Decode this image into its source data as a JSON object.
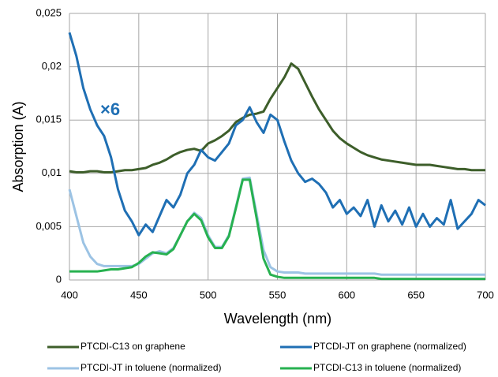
{
  "chart_data": {
    "type": "line",
    "xlabel": "Wavelength (nm)",
    "ylabel": "Absorption (A)",
    "annotation": "×6",
    "annotation_color": "#1f6fb4",
    "grid": true,
    "xlim": [
      400,
      700
    ],
    "xticks": [
      400,
      450,
      500,
      550,
      600,
      650,
      700
    ],
    "ylim": [
      0,
      0.025
    ],
    "yticks": [
      0,
      {
        "value": 0.005,
        "label": "0,005"
      },
      {
        "value": 0.01,
        "label": "0,01"
      },
      {
        "value": 0.015,
        "label": "0,015"
      },
      {
        "value": 0.02,
        "label": "0,02"
      },
      {
        "value": 0.025,
        "label": "0,025"
      }
    ],
    "x": [
      400,
      405,
      410,
      415,
      420,
      425,
      430,
      435,
      440,
      445,
      450,
      455,
      460,
      465,
      470,
      475,
      480,
      485,
      490,
      495,
      500,
      505,
      510,
      515,
      520,
      525,
      530,
      535,
      540,
      545,
      550,
      555,
      560,
      565,
      570,
      575,
      580,
      585,
      590,
      595,
      600,
      605,
      610,
      615,
      620,
      625,
      630,
      635,
      640,
      645,
      650,
      655,
      660,
      665,
      670,
      675,
      680,
      685,
      690,
      695,
      700
    ],
    "series": [
      {
        "name": "PTCDI-C13 on graphene",
        "color": "#3d5e2a",
        "values": [
          0.0102,
          0.0101,
          0.0101,
          0.0102,
          0.0102,
          0.0101,
          0.0101,
          0.0102,
          0.0103,
          0.0103,
          0.0104,
          0.0105,
          0.0108,
          0.011,
          0.0113,
          0.0117,
          0.012,
          0.0122,
          0.0123,
          0.0121,
          0.0128,
          0.0131,
          0.0135,
          0.014,
          0.0148,
          0.0152,
          0.0155,
          0.0156,
          0.0158,
          0.017,
          0.018,
          0.019,
          0.0203,
          0.0198,
          0.0185,
          0.0172,
          0.016,
          0.015,
          0.014,
          0.0133,
          0.0128,
          0.0124,
          0.012,
          0.0117,
          0.0115,
          0.0113,
          0.0112,
          0.0111,
          0.011,
          0.0109,
          0.0108,
          0.0108,
          0.0108,
          0.0107,
          0.0106,
          0.0105,
          0.0104,
          0.0104,
          0.0103,
          0.0103,
          0.0103
        ]
      },
      {
        "name": "PTCDI-JT on graphene (normalized)",
        "color": "#1f6fb4",
        "values": [
          0.0232,
          0.021,
          0.018,
          0.016,
          0.0145,
          0.0135,
          0.0115,
          0.0085,
          0.0065,
          0.0055,
          0.0042,
          0.0052,
          0.0045,
          0.006,
          0.0075,
          0.0068,
          0.008,
          0.01,
          0.0108,
          0.0122,
          0.0115,
          0.0112,
          0.012,
          0.0128,
          0.0145,
          0.015,
          0.0162,
          0.0148,
          0.0138,
          0.0155,
          0.015,
          0.013,
          0.0112,
          0.01,
          0.0092,
          0.0095,
          0.009,
          0.0082,
          0.0068,
          0.0075,
          0.0062,
          0.0068,
          0.006,
          0.0075,
          0.005,
          0.007,
          0.0055,
          0.0065,
          0.0052,
          0.0068,
          0.005,
          0.0062,
          0.005,
          0.0058,
          0.0052,
          0.0075,
          0.0048,
          0.0055,
          0.0062,
          0.0075,
          0.007
        ]
      },
      {
        "name": "PTCDI-JT in toluene (normalized)",
        "color": "#9cc3e4",
        "values": [
          0.0085,
          0.006,
          0.0035,
          0.0022,
          0.0015,
          0.0013,
          0.0013,
          0.0013,
          0.0013,
          0.0013,
          0.0015,
          0.002,
          0.0025,
          0.0027,
          0.0025,
          0.003,
          0.0042,
          0.0055,
          0.0063,
          0.0058,
          0.0042,
          0.0031,
          0.0031,
          0.0042,
          0.0068,
          0.0095,
          0.0096,
          0.0062,
          0.0028,
          0.0012,
          0.0008,
          0.0007,
          0.0007,
          0.0007,
          0.0006,
          0.0006,
          0.0006,
          0.0006,
          0.0006,
          0.0006,
          0.0006,
          0.0006,
          0.0006,
          0.0006,
          0.0006,
          0.0005,
          0.0005,
          0.0005,
          0.0005,
          0.0005,
          0.0005,
          0.0005,
          0.0005,
          0.0005,
          0.0005,
          0.0005,
          0.0005,
          0.0005,
          0.0005,
          0.0005,
          0.0005
        ]
      },
      {
        "name": "PTCDI-C13 in toluene (normalized)",
        "color": "#27b150",
        "values": [
          0.0008,
          0.0008,
          0.0008,
          0.0008,
          0.0008,
          0.0009,
          0.001,
          0.001,
          0.0011,
          0.0012,
          0.0016,
          0.0022,
          0.0026,
          0.0025,
          0.0024,
          0.0029,
          0.0042,
          0.0055,
          0.0062,
          0.0056,
          0.004,
          0.003,
          0.003,
          0.0041,
          0.0067,
          0.0094,
          0.0094,
          0.0058,
          0.002,
          0.0005,
          0.0003,
          0.0002,
          0.0002,
          0.0002,
          0.0002,
          0.0002,
          0.0002,
          0.0002,
          0.0002,
          0.0002,
          0.0002,
          0.0002,
          0.0002,
          0.0002,
          0.0002,
          0.0001,
          0.0001,
          0.0001,
          0.0001,
          0.0001,
          0.0001,
          0.0001,
          0.0001,
          0.0001,
          0.0001,
          0.0001,
          0.0001,
          0.0001,
          0.0001,
          0.0001,
          0.0001
        ]
      }
    ]
  }
}
